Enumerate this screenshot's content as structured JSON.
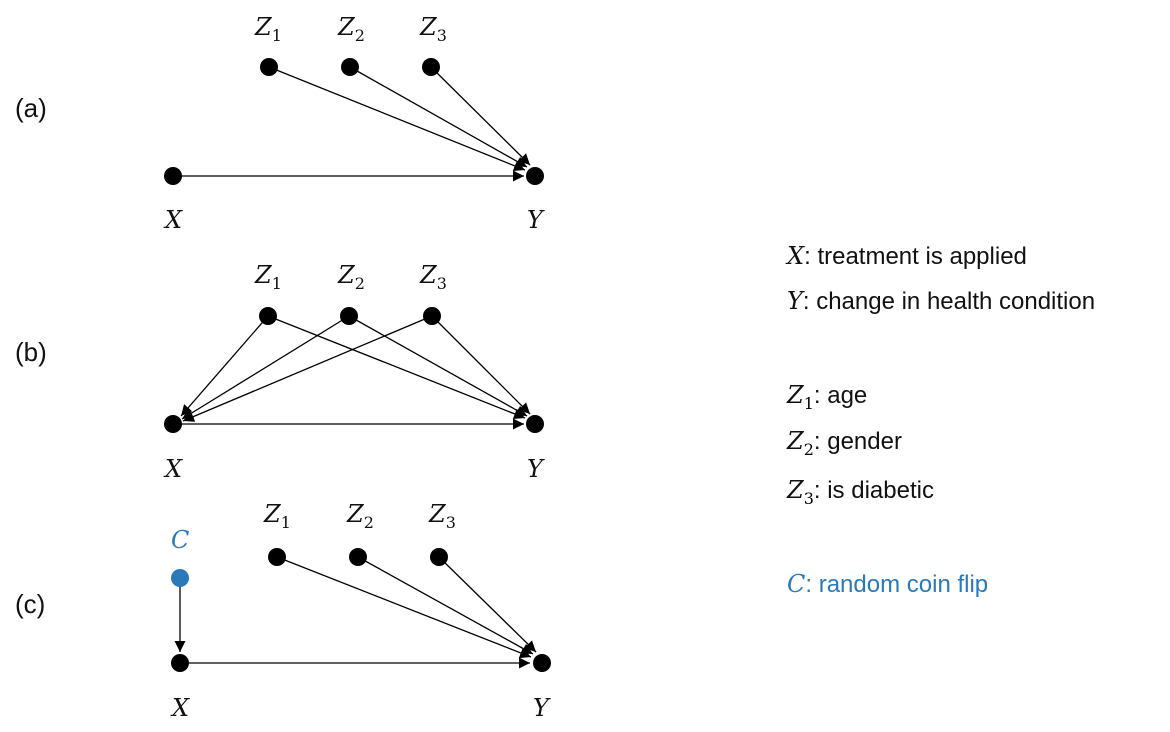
{
  "panels": [
    {
      "label": "(a)",
      "nodes": {
        "Z1": {
          "sym": "Z",
          "sub": "1"
        },
        "Z2": {
          "sym": "Z",
          "sub": "2"
        },
        "Z3": {
          "sym": "Z",
          "sub": "3"
        },
        "X": {
          "sym": "X",
          "sub": ""
        },
        "Y": {
          "sym": "Y",
          "sub": ""
        }
      },
      "edges": [
        [
          "Z1",
          "Y"
        ],
        [
          "Z2",
          "Y"
        ],
        [
          "Z3",
          "Y"
        ],
        [
          "X",
          "Y"
        ]
      ]
    },
    {
      "label": "(b)",
      "nodes": {
        "Z1": {
          "sym": "Z",
          "sub": "1"
        },
        "Z2": {
          "sym": "Z",
          "sub": "2"
        },
        "Z3": {
          "sym": "Z",
          "sub": "3"
        },
        "X": {
          "sym": "X",
          "sub": ""
        },
        "Y": {
          "sym": "Y",
          "sub": ""
        }
      },
      "edges": [
        [
          "Z1",
          "X"
        ],
        [
          "Z1",
          "Y"
        ],
        [
          "Z2",
          "X"
        ],
        [
          "Z2",
          "Y"
        ],
        [
          "Z3",
          "X"
        ],
        [
          "Z3",
          "Y"
        ],
        [
          "X",
          "Y"
        ]
      ]
    },
    {
      "label": "(c)",
      "nodes": {
        "C": {
          "sym": "C",
          "sub": "",
          "color": "#2a7ab9"
        },
        "Z1": {
          "sym": "Z",
          "sub": "1"
        },
        "Z2": {
          "sym": "Z",
          "sub": "2"
        },
        "Z3": {
          "sym": "Z",
          "sub": "3"
        },
        "X": {
          "sym": "X",
          "sub": ""
        },
        "Y": {
          "sym": "Y",
          "sub": ""
        }
      },
      "edges": [
        [
          "C",
          "X"
        ],
        [
          "Z1",
          "Y"
        ],
        [
          "Z2",
          "Y"
        ],
        [
          "Z3",
          "Y"
        ],
        [
          "X",
          "Y"
        ]
      ]
    }
  ],
  "legend": [
    {
      "sym": "X",
      "sub": "",
      "text": "treatment is applied"
    },
    {
      "sym": "Y",
      "sub": "",
      "text": "change in health condition"
    },
    {
      "sym": "Z",
      "sub": "1",
      "text": "age"
    },
    {
      "sym": "Z",
      "sub": "2",
      "text": "gender"
    },
    {
      "sym": "Z",
      "sub": "3",
      "text": "is diabetic"
    },
    {
      "sym": "C",
      "sub": "",
      "text": "random coin flip",
      "color": "#2a7ab9"
    }
  ]
}
